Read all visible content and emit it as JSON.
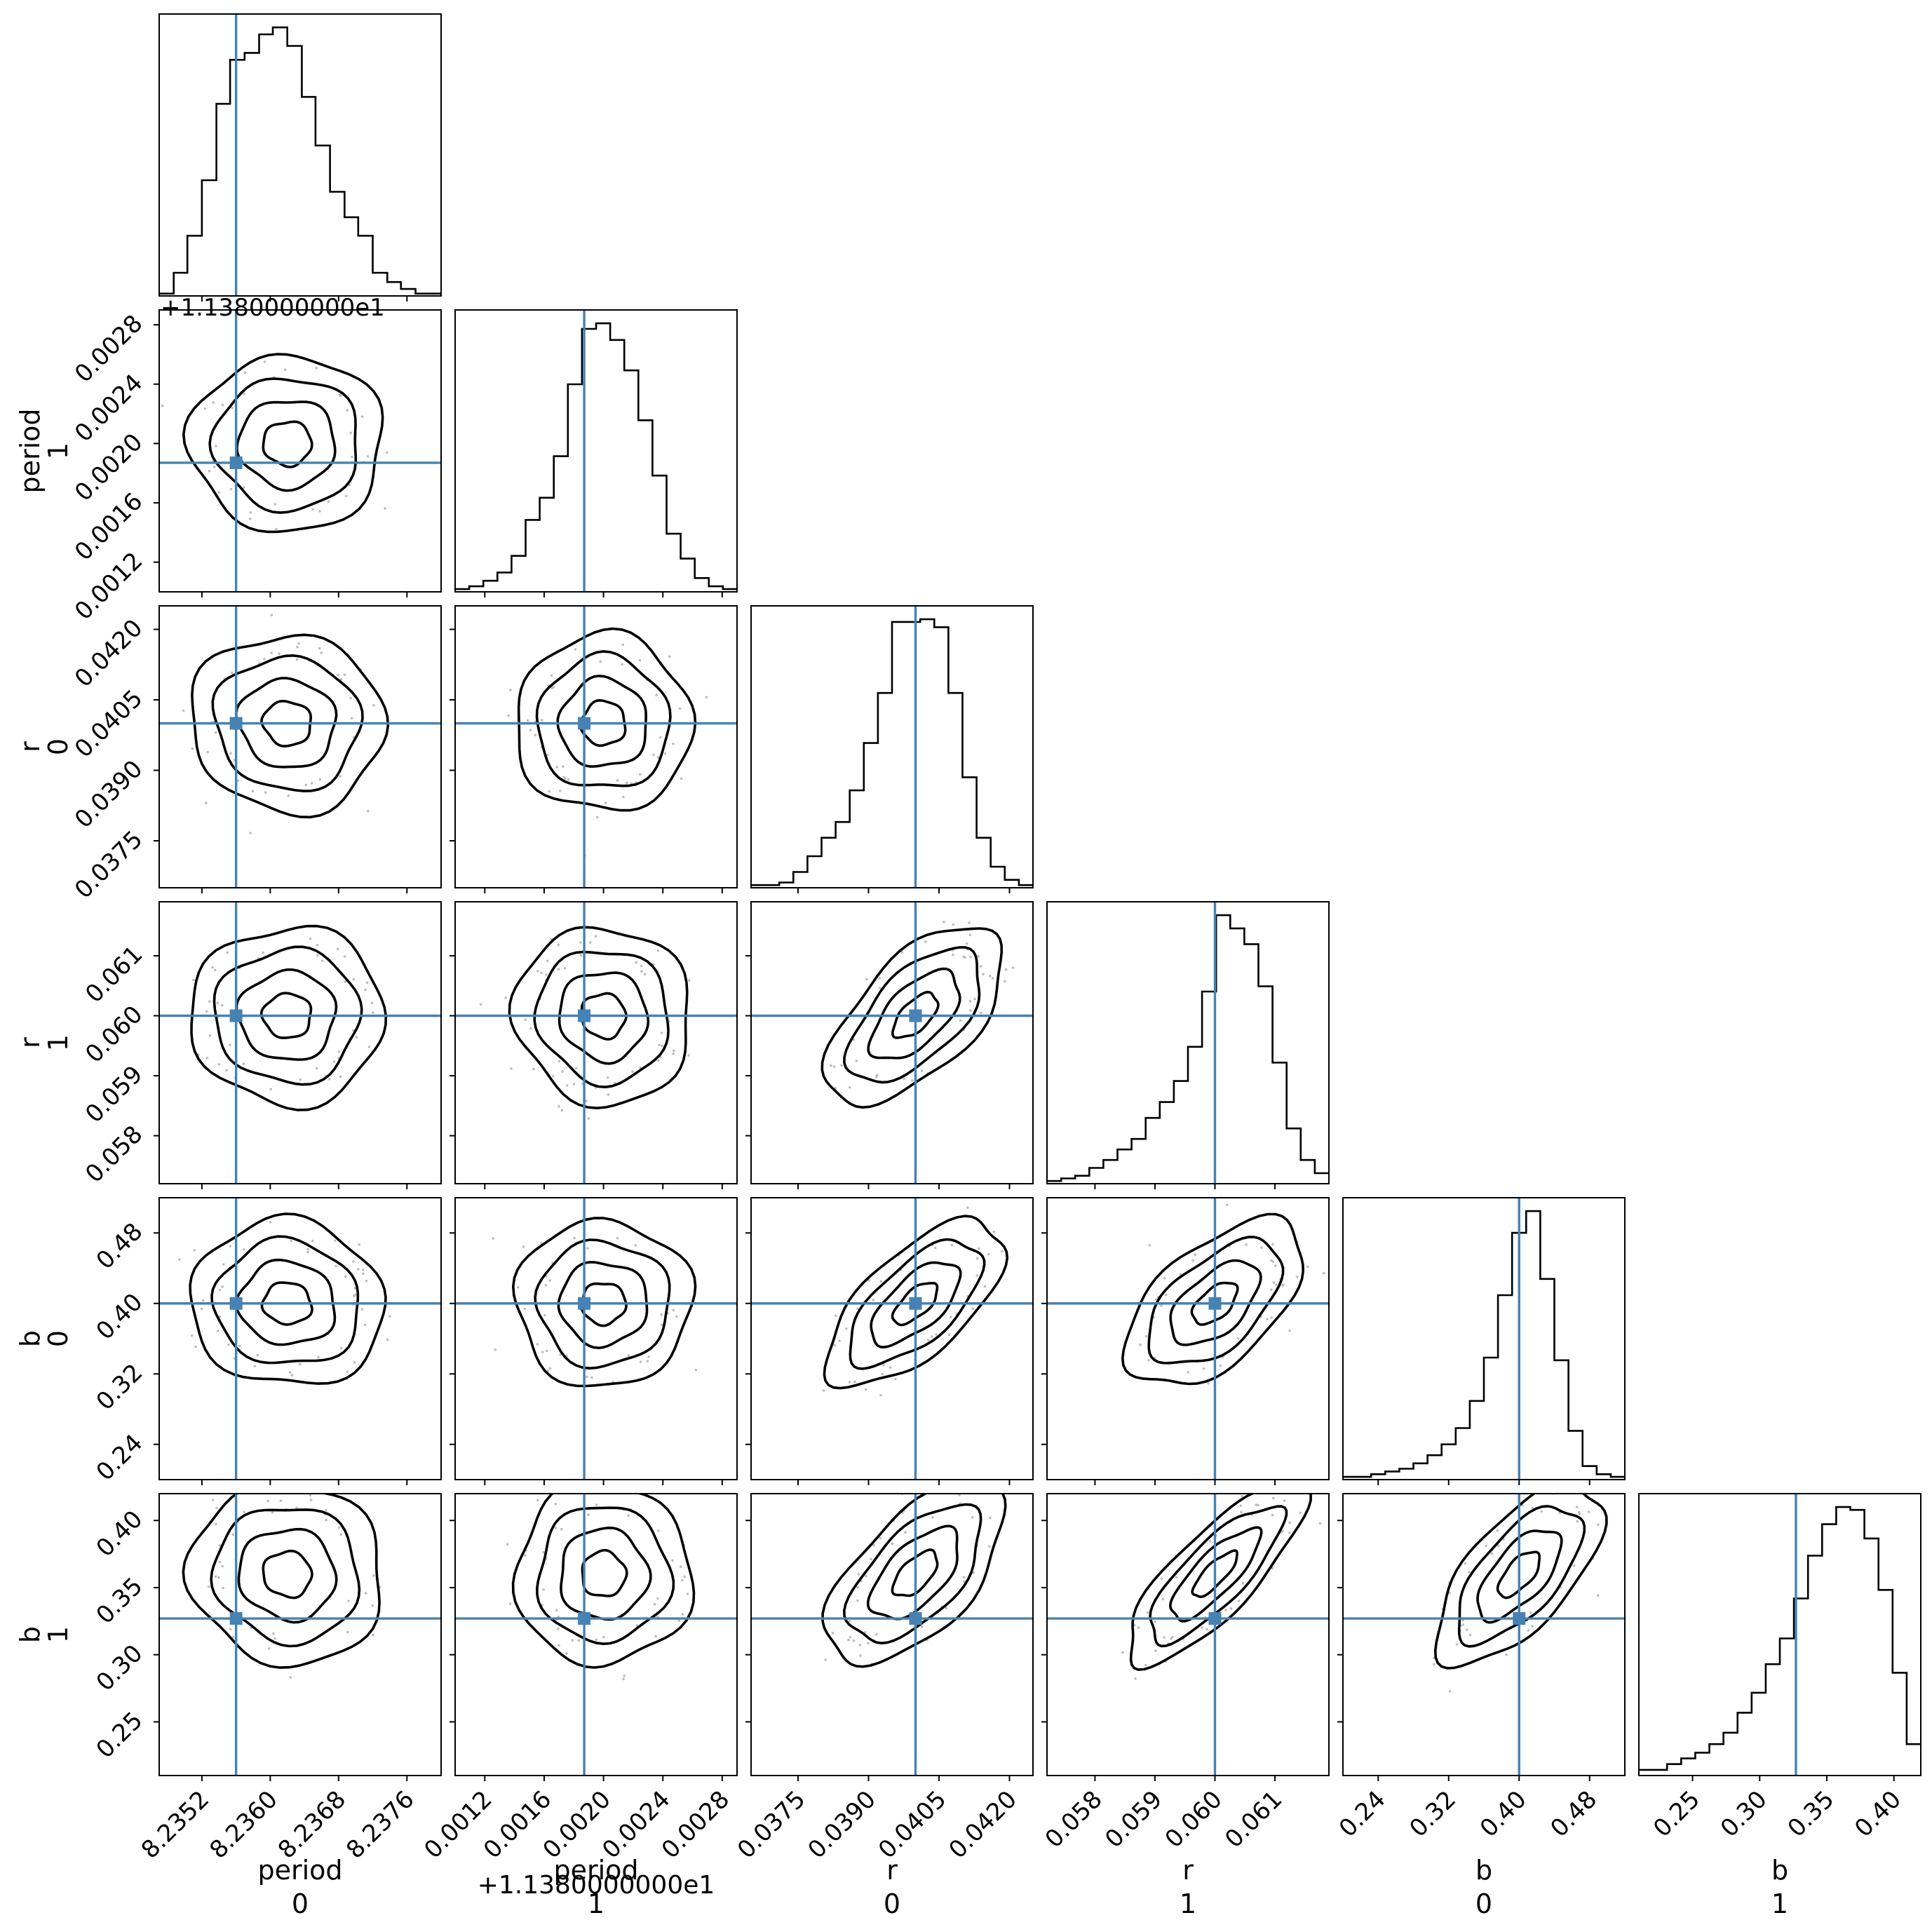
{
  "chart_data": {
    "type": "corner",
    "title": "",
    "truth_color": "#4682b4",
    "parameters": [
      {
        "name": "period",
        "index": "0",
        "range": [
          8.2347,
          8.238
        ],
        "ticks": [
          8.2352,
          8.236,
          8.2368,
          8.2376
        ],
        "tick_labels": [
          "8.2352",
          "8.2360",
          "8.2368",
          "8.2376"
        ],
        "truth": 8.2356,
        "offset_label": "+1.1380000000e1",
        "mean": 8.2362,
        "sd": 0.00042
      },
      {
        "name": "period",
        "index": "1",
        "range": [
          0.001,
          0.0029
        ],
        "ticks": [
          0.0012,
          0.0016,
          0.002,
          0.0024,
          0.0028
        ],
        "tick_labels": [
          "0.0012",
          "0.0016",
          "0.0020",
          "0.0024",
          "0.0028"
        ],
        "truth": 0.00187,
        "offset_label": "+1.1380000000e1",
        "mean": 0.002,
        "sd": 0.00022
      },
      {
        "name": "r",
        "index": "0",
        "range": [
          0.0365,
          0.0425
        ],
        "ticks": [
          0.0375,
          0.039,
          0.0405,
          0.042
        ],
        "tick_labels": [
          "0.0375",
          "0.0390",
          "0.0405",
          "0.0420"
        ],
        "truth": 0.04,
        "offset_label": "",
        "mean": 0.04,
        "sd": 0.0007
      },
      {
        "name": "r",
        "index": "1",
        "range": [
          0.0572,
          0.0619
        ],
        "ticks": [
          0.058,
          0.059,
          0.06,
          0.061
        ],
        "tick_labels": [
          "0.058",
          "0.059",
          "0.060",
          "0.061"
        ],
        "truth": 0.06,
        "offset_label": "",
        "mean": 0.06,
        "sd": 0.00055
      },
      {
        "name": "b",
        "index": "0",
        "range": [
          0.2,
          0.52
        ],
        "ticks": [
          0.24,
          0.32,
          0.4,
          0.48
        ],
        "tick_labels": [
          "0.24",
          "0.32",
          "0.40",
          "0.48"
        ],
        "truth": 0.4,
        "offset_label": "",
        "mean": 0.4,
        "sd": 0.035
      },
      {
        "name": "b",
        "index": "1",
        "range": [
          0.21,
          0.42
        ],
        "ticks": [
          0.25,
          0.3,
          0.35,
          0.4
        ],
        "tick_labels": [
          "0.25",
          "0.30",
          "0.35",
          "0.40"
        ],
        "truth": 0.327,
        "offset_label": "",
        "mean": 0.36,
        "sd": 0.025
      }
    ],
    "histograms": [
      {
        "parameter": 0,
        "edges": [
          8.2347,
          8.23487,
          8.23503,
          8.2352,
          8.23537,
          8.23553,
          8.2357,
          8.23587,
          8.23603,
          8.2362,
          8.23637,
          8.23653,
          8.2367,
          8.23687,
          8.23703,
          8.2372,
          8.23737,
          8.23753,
          8.2377,
          8.23787,
          8.238
        ],
        "counts": [
          1,
          10,
          26,
          50,
          83,
          102,
          105,
          113,
          116,
          108,
          86,
          65,
          45,
          34,
          26,
          10,
          6,
          3,
          1,
          1
        ]
      },
      {
        "parameter": 1,
        "edges": [
          0.001,
          0.001095,
          0.00119,
          0.001285,
          0.00138,
          0.001475,
          0.00157,
          0.001665,
          0.00176,
          0.001855,
          0.00195,
          0.002045,
          0.00214,
          0.002235,
          0.00233,
          0.002425,
          0.00252,
          0.002615,
          0.00271,
          0.002805,
          0.0029
        ],
        "counts": [
          1,
          2,
          4,
          7,
          13,
          26,
          34,
          49,
          75,
          95,
          97,
          91,
          80,
          62,
          42,
          21,
          12,
          5,
          2,
          1
        ]
      },
      {
        "parameter": 2,
        "edges": [
          0.0365,
          0.0368,
          0.0371,
          0.0374,
          0.0377,
          0.038,
          0.0383,
          0.0386,
          0.0389,
          0.0392,
          0.0395,
          0.0398,
          0.0401,
          0.0404,
          0.0407,
          0.041,
          0.0413,
          0.0416,
          0.0419,
          0.0422,
          0.0425
        ],
        "counts": [
          1,
          1,
          2,
          6,
          12,
          19,
          25,
          37,
          55,
          74,
          101,
          101,
          102,
          99,
          74,
          42,
          19,
          8,
          3,
          1
        ]
      },
      {
        "parameter": 3,
        "edges": [
          0.0572,
          0.057435,
          0.05767,
          0.057905,
          0.05814,
          0.058375,
          0.05861,
          0.058845,
          0.05908,
          0.059315,
          0.05955,
          0.059785,
          0.06002,
          0.060255,
          0.06049,
          0.060725,
          0.06096,
          0.061195,
          0.06143,
          0.061665,
          0.0619
        ],
        "counts": [
          1,
          2,
          3,
          6,
          9,
          13,
          17,
          25,
          31,
          39,
          52,
          73,
          102,
          97,
          91,
          75,
          46,
          21,
          9,
          4
        ]
      },
      {
        "parameter": 4,
        "edges": [
          0.2,
          0.216,
          0.232,
          0.248,
          0.264,
          0.28,
          0.296,
          0.312,
          0.328,
          0.344,
          0.36,
          0.376,
          0.392,
          0.408,
          0.424,
          0.44,
          0.456,
          0.472,
          0.488,
          0.504,
          0.52
        ],
        "counts": [
          1,
          1,
          2,
          3,
          4,
          6,
          9,
          13,
          19,
          29,
          45,
          68,
          91,
          99,
          74,
          44,
          18,
          5,
          2,
          1
        ]
      },
      {
        "parameter": 5,
        "edges": [
          0.21,
          0.2205,
          0.231,
          0.2415,
          0.252,
          0.2625,
          0.273,
          0.2835,
          0.294,
          0.3045,
          0.315,
          0.3255,
          0.336,
          0.3465,
          0.357,
          0.3675,
          0.378,
          0.3885,
          0.399,
          0.4095,
          0.42
        ],
        "counts": [
          2,
          2,
          4,
          6,
          8,
          11,
          15,
          22,
          29,
          39,
          48,
          62,
          77,
          88,
          94,
          93,
          83,
          65,
          36,
          11
        ]
      }
    ],
    "pairs": [
      {
        "x": 0,
        "y": 1,
        "corr": 0.0
      },
      {
        "x": 0,
        "y": 2,
        "corr": -0.05
      },
      {
        "x": 1,
        "y": 2,
        "corr": 0.0
      },
      {
        "x": 0,
        "y": 3,
        "corr": 0.0
      },
      {
        "x": 1,
        "y": 3,
        "corr": -0.05
      },
      {
        "x": 2,
        "y": 3,
        "corr": 0.6
      },
      {
        "x": 0,
        "y": 4,
        "corr": -0.05
      },
      {
        "x": 1,
        "y": 4,
        "corr": 0.0
      },
      {
        "x": 2,
        "y": 4,
        "corr": 0.65
      },
      {
        "x": 3,
        "y": 4,
        "corr": 0.55
      },
      {
        "x": 0,
        "y": 5,
        "corr": -0.05
      },
      {
        "x": 1,
        "y": 5,
        "corr": 0.0
      },
      {
        "x": 2,
        "y": 5,
        "corr": 0.6
      },
      {
        "x": 3,
        "y": 5,
        "corr": 0.8
      },
      {
        "x": 4,
        "y": 5,
        "corr": 0.65
      }
    ],
    "contour_levels_sigma": [
      0.5,
      1.0,
      1.5,
      2.0
    ]
  }
}
